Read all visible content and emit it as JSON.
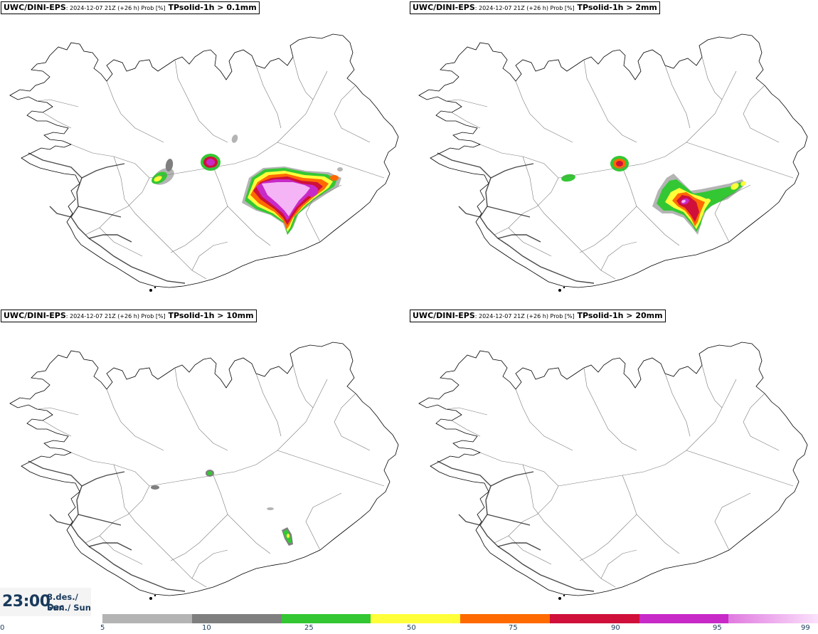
{
  "panels": [
    {
      "model": "UWC/DINI-EPS",
      "info": ": 2024-12-07 21Z (+26 h) Prob [%]",
      "param": " TPsolid-1h > 0.1mm"
    },
    {
      "model": "UWC/DINI-EPS",
      "info": ": 2024-12-07 21Z (+26 h) Prob [%]",
      "param": " TPsolid-1h > 2mm"
    },
    {
      "model": "UWC/DINI-EPS",
      "info": ": 2024-12-07 21Z (+26 h) Prob [%]",
      "param": " TPsolid-1h > 10mm"
    },
    {
      "model": "UWC/DINI-EPS",
      "info": ": 2024-12-07 21Z (+26 h) Prob [%]",
      "param": " TPsolid-1h > 20mm"
    }
  ],
  "valid_time": {
    "time": "23:00",
    "date": "8.des./ Dec",
    "weekday": "Sun./ Sun"
  },
  "legend": {
    "ticks": [
      "0",
      "5",
      "10",
      "25",
      "50",
      "75",
      "90",
      "95",
      "99"
    ],
    "colors": [
      "#b4b4b4",
      "#7f7f7f",
      "#34c734",
      "#ffff3a",
      "#ff6a00",
      "#d0103a",
      "#c82ac8",
      "#f5b4f5"
    ]
  }
}
